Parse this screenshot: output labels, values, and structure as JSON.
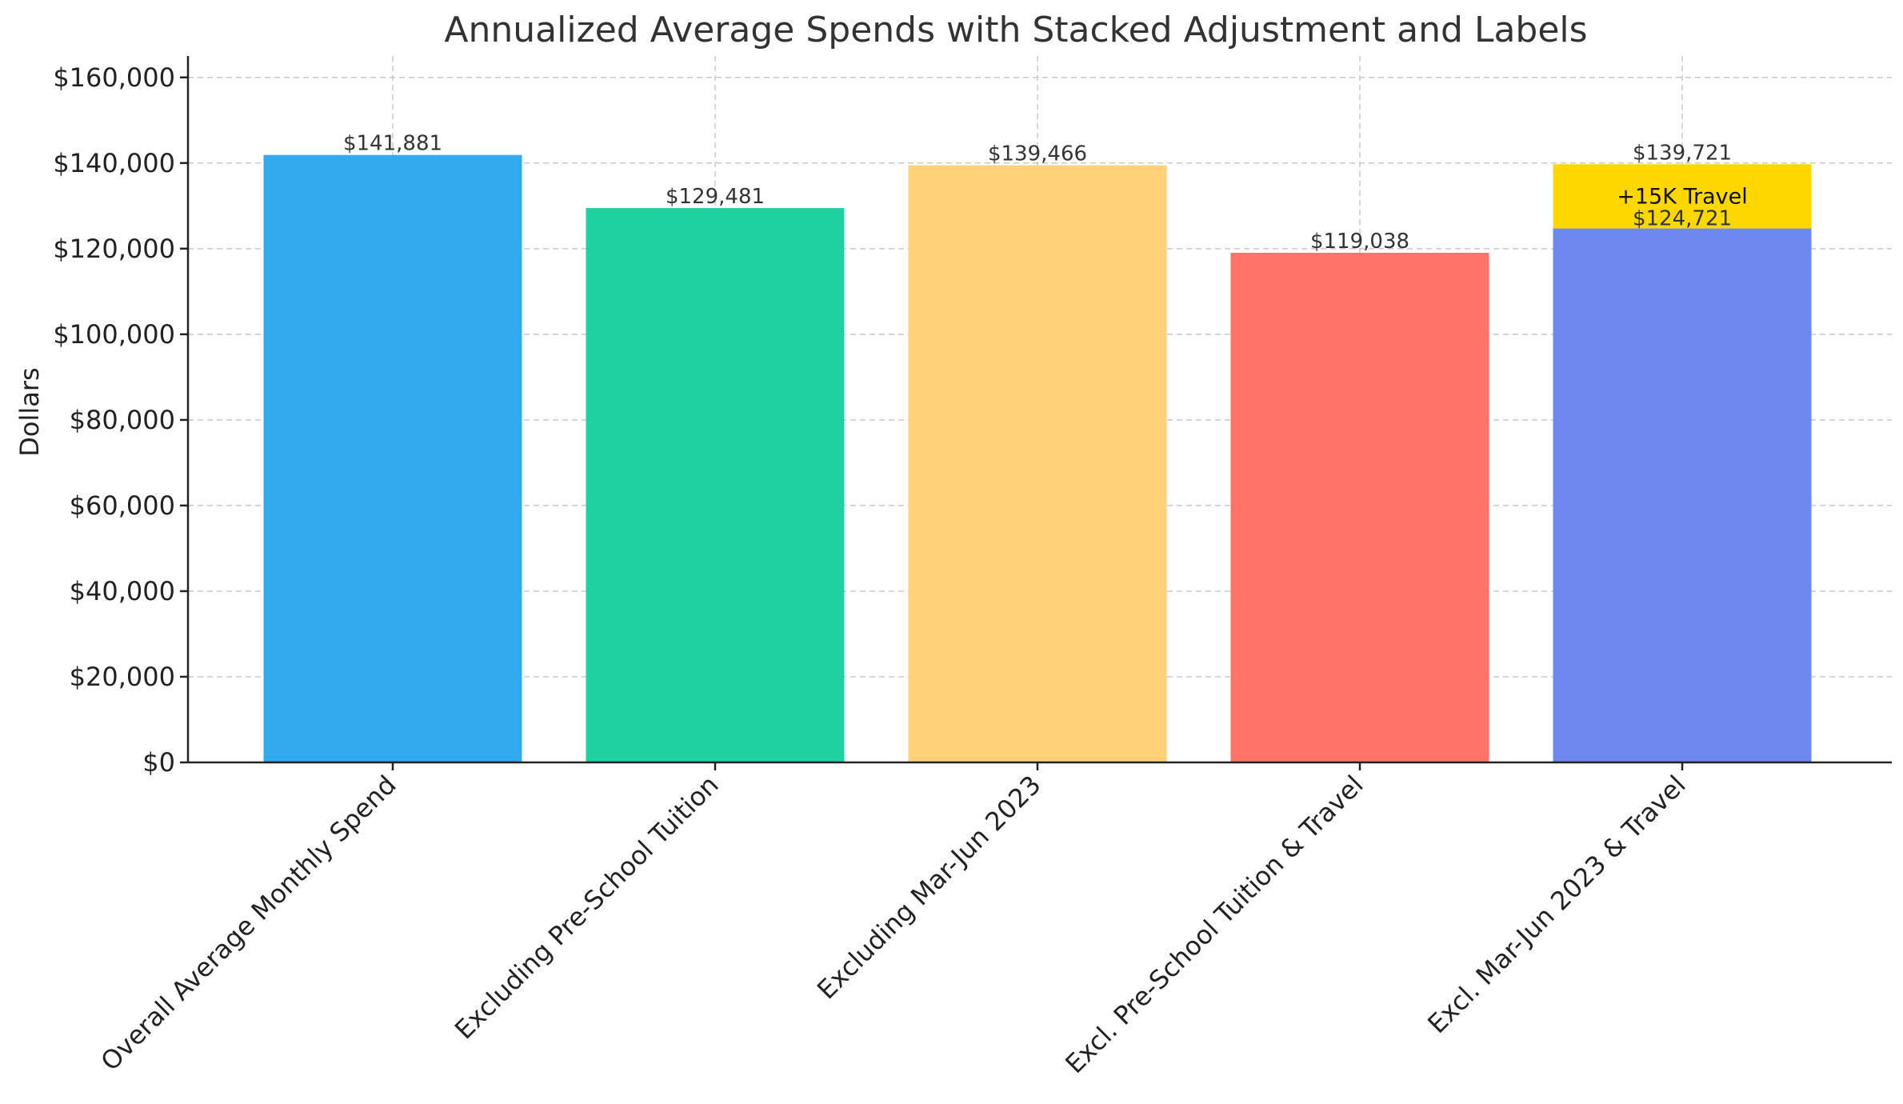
{
  "chart_data": {
    "type": "bar",
    "title": "Annualized Average Spends with Stacked Adjustment and Labels",
    "xlabel": "",
    "ylabel": "Dollars",
    "ylim": [
      0,
      165000
    ],
    "yticks": [
      0,
      20000,
      40000,
      60000,
      80000,
      100000,
      120000,
      140000,
      160000
    ],
    "ytick_labels": [
      "$0",
      "$20,000",
      "$40,000",
      "$60,000",
      "$80,000",
      "$100,000",
      "$120,000",
      "$140,000",
      "$160,000"
    ],
    "grid": true,
    "categories": [
      "Overall Average Monthly Spend",
      "Excluding Pre-School Tuition",
      "Excluding Mar-Jun 2023",
      "Excl. Pre-School Tuition & Travel",
      "Excl. Mar-Jun 2023 & Travel"
    ],
    "values": [
      141881,
      129481,
      139466,
      119038,
      124721
    ],
    "value_labels": [
      "$141,881",
      "$129,481",
      "$139,466",
      "$119,038",
      "$124,721"
    ],
    "colors": [
      "#33AAEE",
      "#1DD1A1",
      "#FFD27A",
      "#FF7369",
      "#6E88F0"
    ],
    "stacked_adjustment": {
      "category_index": 4,
      "value": 15000,
      "label": "+15K Travel",
      "total_label": "$139,721",
      "color": "#FFD700"
    }
  }
}
